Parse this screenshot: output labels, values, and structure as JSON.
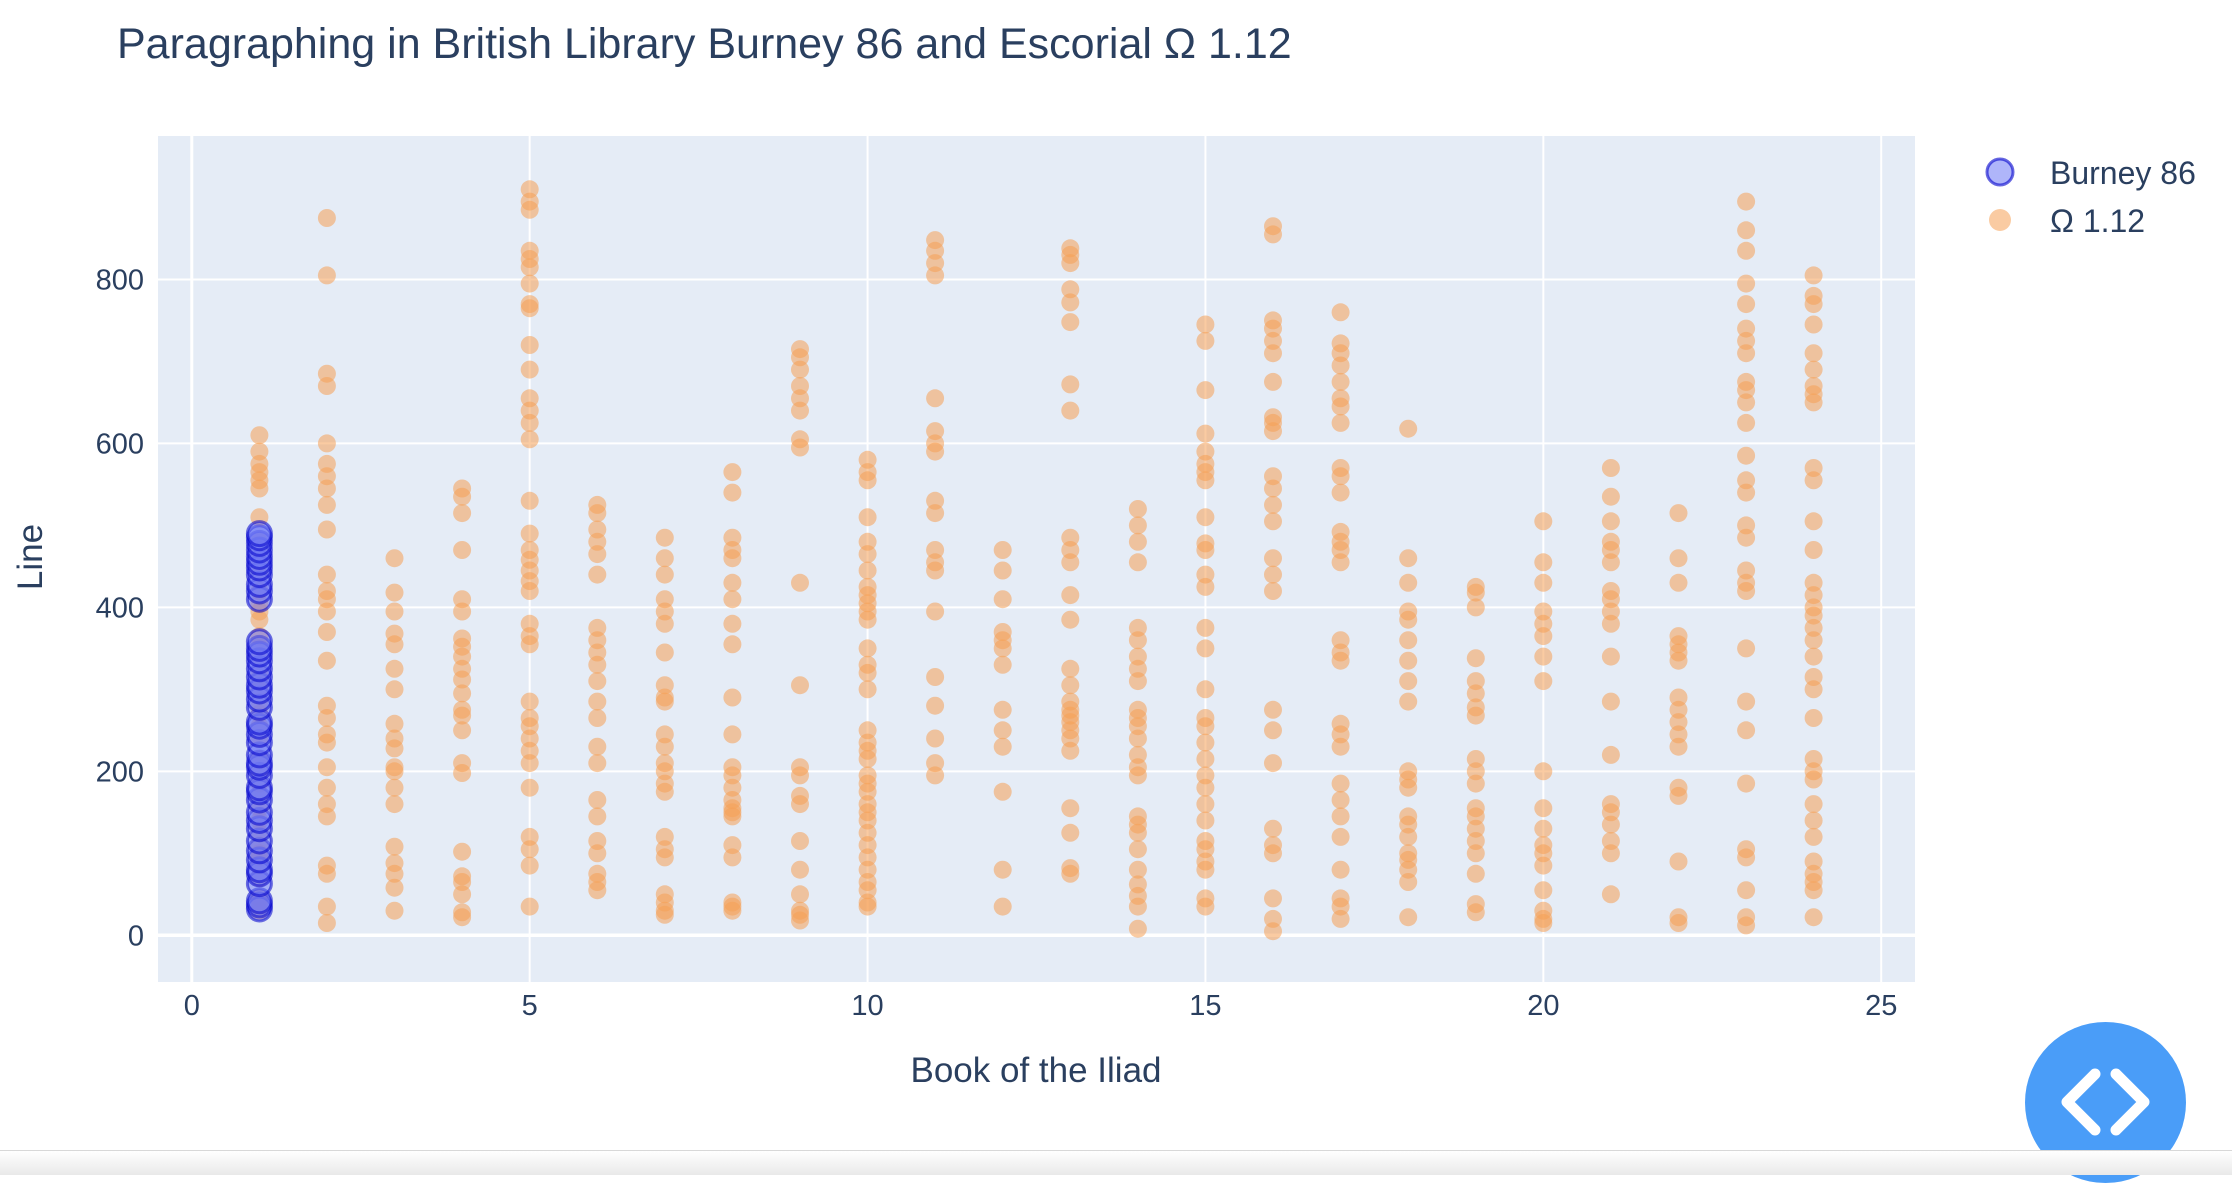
{
  "chart_data": {
    "type": "scatter",
    "title": "Paragraphing in British Library Burney 86 and Escorial Ω 1.12",
    "xlabel": "Book of the Iliad",
    "ylabel": "Line",
    "xlim": [
      -0.5,
      25.5
    ],
    "ylim": [
      -57,
      975
    ],
    "x_ticks": [
      0,
      5,
      10,
      15,
      20,
      25
    ],
    "y_ticks": [
      0,
      200,
      400,
      600,
      800
    ],
    "grid": true,
    "legend_position": "top-right outside plot",
    "plot_background": "#e5ecf6",
    "series": [
      {
        "name": "Burney 86",
        "color": "#0000cc",
        "fill": "rgba(110,120,245,0.55)",
        "points": {
          "1": [
            32,
            37,
            42,
            63,
            75,
            80,
            92,
            103,
            115,
            130,
            140,
            150,
            165,
            175,
            180,
            195,
            205,
            210,
            220,
            235,
            245,
            255,
            260,
            278,
            288,
            298,
            305,
            315,
            325,
            335,
            343,
            350,
            358,
            410,
            420,
            428,
            440,
            448,
            455,
            462,
            470,
            478,
            485,
            490
          ]
        }
      },
      {
        "name": "Ω 1.12",
        "color": "#f5a35a",
        "fill": "rgba(245,160,85,0.55)",
        "points": {
          "1": [
            30,
            36,
            40,
            45,
            70,
            85,
            95,
            100,
            110,
            125,
            140,
            155,
            170,
            185,
            200,
            215,
            240,
            255,
            270,
            285,
            300,
            310,
            320,
            340,
            355,
            365,
            385,
            395,
            405,
            420,
            440,
            455,
            470,
            480,
            510,
            545,
            555,
            565,
            575,
            590,
            610
          ],
          "2": [
            15,
            35,
            75,
            85,
            145,
            160,
            180,
            205,
            235,
            245,
            265,
            280,
            335,
            370,
            395,
            410,
            420,
            440,
            495,
            525,
            545,
            560,
            575,
            600,
            670,
            685,
            805,
            875
          ],
          "3": [
            30,
            58,
            75,
            88,
            108,
            160,
            180,
            200,
            205,
            228,
            240,
            258,
            300,
            325,
            355,
            368,
            395,
            418,
            460
          ],
          "4": [
            22,
            28,
            50,
            65,
            72,
            102,
            198,
            210,
            250,
            268,
            275,
            295,
            312,
            325,
            340,
            352,
            362,
            395,
            410,
            470,
            515,
            535,
            545
          ],
          "5": [
            35,
            85,
            105,
            120,
            180,
            210,
            225,
            240,
            255,
            265,
            285,
            355,
            365,
            380,
            420,
            432,
            445,
            458,
            470,
            490,
            530,
            605,
            625,
            640,
            655,
            690,
            720,
            765,
            770,
            795,
            815,
            825,
            835,
            885,
            895,
            910
          ],
          "6": [
            55,
            65,
            75,
            100,
            115,
            145,
            165,
            210,
            230,
            265,
            285,
            310,
            330,
            345,
            360,
            375,
            440,
            465,
            480,
            495,
            515,
            525
          ],
          "7": [
            25,
            30,
            40,
            50,
            95,
            105,
            120,
            175,
            185,
            200,
            210,
            230,
            245,
            285,
            290,
            305,
            345,
            380,
            395,
            410,
            440,
            460,
            485
          ],
          "8": [
            30,
            35,
            40,
            95,
            110,
            145,
            150,
            155,
            165,
            180,
            195,
            205,
            245,
            290,
            355,
            380,
            410,
            430,
            460,
            470,
            485,
            540,
            565
          ],
          "9": [
            18,
            25,
            30,
            50,
            80,
            115,
            160,
            170,
            195,
            205,
            305,
            430,
            595,
            605,
            640,
            655,
            670,
            690,
            705,
            715
          ],
          "10": [
            35,
            40,
            55,
            65,
            80,
            95,
            110,
            125,
            140,
            150,
            160,
            175,
            185,
            195,
            215,
            225,
            235,
            250,
            300,
            320,
            330,
            350,
            385,
            395,
            405,
            415,
            425,
            445,
            465,
            480,
            510,
            555,
            565,
            580
          ],
          "11": [
            195,
            210,
            240,
            280,
            315,
            395,
            445,
            455,
            470,
            515,
            530,
            590,
            600,
            615,
            655,
            805,
            820,
            835,
            848
          ],
          "12": [
            35,
            80,
            175,
            230,
            250,
            275,
            330,
            350,
            360,
            370,
            410,
            445,
            470
          ],
          "13": [
            75,
            82,
            125,
            155,
            225,
            240,
            250,
            260,
            268,
            275,
            285,
            305,
            325,
            385,
            415,
            455,
            470,
            485,
            640,
            672,
            748,
            772,
            788,
            820,
            830,
            838
          ],
          "14": [
            8,
            35,
            48,
            62,
            80,
            105,
            125,
            135,
            145,
            195,
            205,
            220,
            240,
            255,
            265,
            275,
            310,
            325,
            340,
            360,
            375,
            455,
            480,
            500,
            520
          ],
          "15": [
            35,
            45,
            80,
            90,
            105,
            115,
            140,
            160,
            180,
            195,
            215,
            235,
            255,
            265,
            300,
            350,
            375,
            425,
            440,
            470,
            478,
            510,
            555,
            565,
            575,
            590,
            612,
            665,
            725,
            745
          ],
          "16": [
            5,
            20,
            45,
            100,
            110,
            130,
            210,
            250,
            275,
            420,
            440,
            460,
            505,
            525,
            545,
            560,
            615,
            625,
            632,
            675,
            710,
            725,
            740,
            750,
            855,
            865
          ],
          "17": [
            20,
            35,
            45,
            80,
            120,
            145,
            165,
            185,
            230,
            245,
            258,
            335,
            345,
            360,
            455,
            470,
            480,
            492,
            540,
            560,
            570,
            625,
            645,
            655,
            675,
            695,
            710,
            722,
            760
          ],
          "18": [
            22,
            65,
            80,
            92,
            100,
            120,
            135,
            145,
            180,
            190,
            200,
            285,
            310,
            335,
            360,
            385,
            395,
            430,
            460,
            618
          ],
          "19": [
            28,
            38,
            75,
            100,
            115,
            130,
            145,
            155,
            185,
            200,
            215,
            268,
            278,
            295,
            310,
            338,
            400,
            418,
            425
          ],
          "20": [
            15,
            20,
            30,
            55,
            85,
            100,
            110,
            130,
            155,
            200,
            310,
            340,
            365,
            380,
            395,
            430,
            455,
            505
          ],
          "21": [
            50,
            100,
            115,
            135,
            150,
            160,
            220,
            285,
            340,
            380,
            395,
            410,
            420,
            455,
            470,
            480,
            505,
            535,
            570
          ],
          "22": [
            15,
            22,
            90,
            170,
            180,
            230,
            245,
            260,
            275,
            290,
            335,
            345,
            355,
            365,
            430,
            460,
            515
          ],
          "23": [
            12,
            22,
            55,
            95,
            105,
            185,
            250,
            285,
            350,
            420,
            430,
            445,
            485,
            500,
            540,
            555,
            585,
            625,
            650,
            665,
            675,
            710,
            725,
            740,
            770,
            795,
            835,
            860,
            895
          ],
          "24": [
            22,
            55,
            65,
            75,
            90,
            120,
            140,
            160,
            190,
            200,
            215,
            265,
            300,
            315,
            340,
            360,
            375,
            390,
            400,
            415,
            430,
            470,
            505,
            555,
            570,
            650,
            660,
            670,
            690,
            710,
            745,
            770,
            780,
            805
          ]
        }
      }
    ]
  },
  "toolbar": {
    "code_button_icon": "code-brackets-icon"
  }
}
